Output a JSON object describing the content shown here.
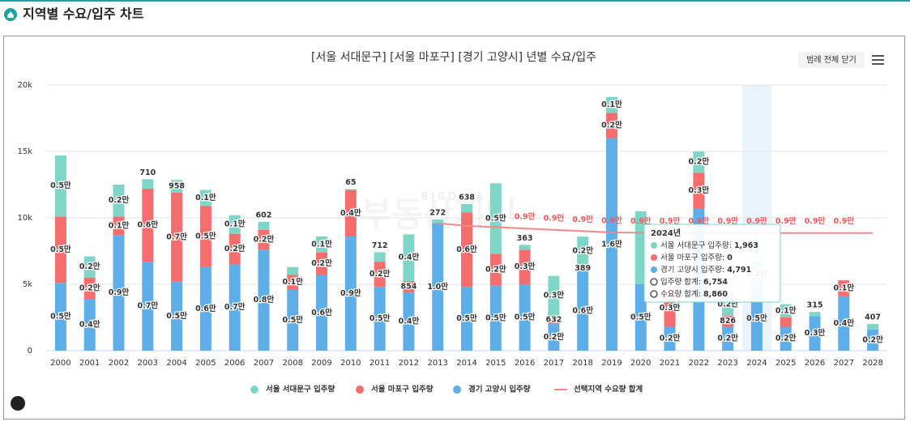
{
  "header": {
    "title": "지역별 수요/입주 차트"
  },
  "chart_data": {
    "type": "bar",
    "stacked": true,
    "title": "[서울 서대문구] [서울 마포구] [경기 고양시] 년별 수요/입주",
    "button": "범례 전체 닫기",
    "watermark": [
      "BIGDATA",
      "부동산지인"
    ],
    "categories": [
      "2000",
      "2001",
      "2002",
      "2003",
      "2004",
      "2005",
      "2006",
      "2007",
      "2008",
      "2009",
      "2010",
      "2011",
      "2012",
      "2013",
      "2014",
      "2015",
      "2016",
      "2017",
      "2018",
      "2019",
      "2020",
      "2021",
      "2022",
      "2023",
      "2024",
      "2025",
      "2026",
      "2027",
      "2028"
    ],
    "ylim": [
      0,
      20000
    ],
    "yticks": [
      0,
      {
        "value": 5000,
        "label": "5k"
      },
      {
        "value": 10000,
        "label": "10k"
      },
      {
        "value": 15000,
        "label": "15k"
      },
      {
        "value": 20000,
        "label": "20k"
      }
    ],
    "grid": true,
    "legend": "bottom",
    "highlight": "2024",
    "series": [
      {
        "name": "경기 고양시 입주량",
        "color": "#5eaeea",
        "values": [
          5100,
          3900,
          8700,
          6700,
          5200,
          6300,
          6500,
          7600,
          4600,
          5700,
          8600,
          4800,
          4400,
          9600,
          4800,
          4900,
          5000,
          2000,
          6000,
          16000,
          5000,
          1800,
          10700,
          1800,
          4791,
          1800,
          2600,
          4100,
          1600
        ],
        "value_labels": [
          "0.5만",
          "0.4만",
          "0.9만",
          "0.7만",
          "0.5만",
          "0.6만",
          "0.7만",
          "0.8만",
          "0.5만",
          "0.6만",
          "0.9만",
          "0.5만",
          "0.4만",
          "1.0만",
          "0.5만",
          "0.5만",
          "0.5만",
          "0.2만",
          "0.6만",
          "1.6만",
          "0.5만",
          "0.2만",
          null,
          "0.2만",
          "0.5만",
          "0.2만",
          "0.3만",
          "0.4만",
          "0.2만"
        ]
      },
      {
        "name": "서울 마포구 입주량",
        "color": "#f56d6d",
        "values": [
          5000,
          1600,
          1400,
          5500,
          6700,
          4600,
          2300,
          1500,
          1100,
          1700,
          3500,
          1900,
          854,
          0,
          5600,
          2400,
          2600,
          632,
          389,
          1900,
          0,
          2800,
          2700,
          826,
          0,
          700,
          0,
          1200,
          0
        ],
        "value_labels": [
          "0.5만",
          "0.2만",
          "0.1만",
          "0.6만",
          "0.7만",
          "0.5만",
          "0.2만",
          "0.2만",
          "0.1만",
          "0.2만",
          "0.4만",
          "0.2만",
          "854",
          null,
          "0.6만",
          "0.2만",
          "0.3만",
          "632",
          "389",
          "0.2만",
          null,
          "0.3만",
          "0.3만",
          "826",
          null,
          null,
          null,
          "0.1만",
          null
        ]
      },
      {
        "name": "서울 서대문구 입주량",
        "color": "#7fd6c7",
        "values": [
          4600,
          1600,
          2400,
          710,
          958,
          1200,
          1400,
          602,
          600,
          1200,
          65,
          712,
          3500,
          272,
          638,
          5300,
          363,
          3000,
          2200,
          1200,
          5500,
          0,
          1600,
          1700,
          1963,
          1000,
          315,
          0,
          407
        ],
        "value_labels": [
          "0.5만",
          "0.2만",
          "0.2만",
          "710",
          "958",
          "0.1만",
          "0.1만",
          "602",
          null,
          "0.1만",
          "65",
          "712",
          "0.4만",
          "272",
          "638",
          "0.5만",
          "363",
          "0.3만",
          "0.2만",
          "0.1만",
          null,
          null,
          "0.2만",
          "0.2만",
          "0.2만",
          "0.1만",
          "315",
          null,
          "407"
        ]
      },
      {
        "name": "선택지역 수요량 합계",
        "type": "line",
        "color": "#f08a8a",
        "values": [
          null,
          null,
          null,
          null,
          null,
          null,
          null,
          null,
          null,
          null,
          null,
          null,
          null,
          9600,
          9400,
          9300,
          9200,
          9100,
          9000,
          8900,
          8880,
          8860,
          8860,
          8860,
          8860,
          8860,
          8860,
          8860,
          8860
        ],
        "value_labels": [
          null,
          null,
          null,
          null,
          null,
          null,
          null,
          null,
          null,
          null,
          null,
          null,
          null,
          null,
          null,
          null,
          "0.9만",
          "0.9만",
          "0.9만",
          "0.9만",
          "0.9만",
          "0.9만",
          "0.9만",
          "0.9만",
          "0.9만",
          "0.9만",
          "0.9만",
          "0.9만",
          null
        ]
      }
    ],
    "legend_order": [
      2,
      1,
      0,
      3
    ],
    "tooltip": {
      "title": "2024년",
      "rows": [
        {
          "label": "서울 서대문구 입주량",
          "value": "1,963"
        },
        {
          "label": "서울 마포구 입주량",
          "value": "0"
        },
        {
          "label": "경기 고양시 입주량",
          "value": "4,791"
        },
        {
          "label": "입주량 합계",
          "value": "6,754"
        },
        {
          "label": "수요량 합계",
          "value": "8,860"
        }
      ]
    }
  }
}
